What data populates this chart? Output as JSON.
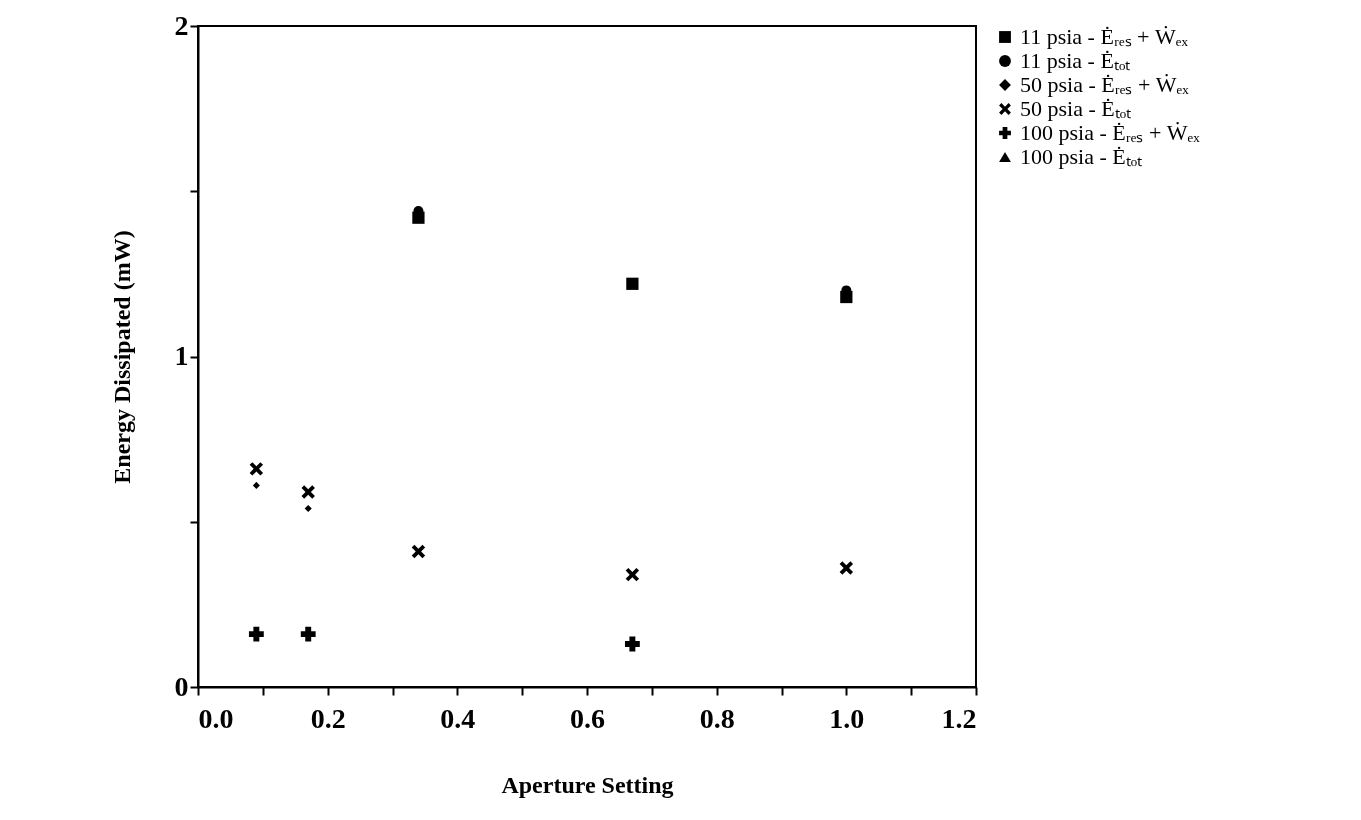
{
  "chart_data": {
    "type": "scatter",
    "xlabel": "Aperture Setting",
    "ylabel": "Energy Dissipated (mW)",
    "xlim": [
      0,
      1.2
    ],
    "xticks": [
      {
        "value": 0,
        "label": "0.0"
      },
      {
        "value": 0.1,
        "label": null
      },
      {
        "value": 0.2,
        "label": "0.2"
      },
      {
        "value": 0.3,
        "label": null
      },
      {
        "value": 0.4,
        "label": "0.4"
      },
      {
        "value": 0.5,
        "label": null
      },
      {
        "value": 0.6,
        "label": "0.6"
      },
      {
        "value": 0.7,
        "label": null
      },
      {
        "value": 0.8,
        "label": "0.8"
      },
      {
        "value": 0.9,
        "label": null
      },
      {
        "value": 1.0,
        "label": "1.0"
      },
      {
        "value": 1.1,
        "label": null
      },
      {
        "value": 1.2,
        "label": "1.2"
      }
    ],
    "ylim": [
      0,
      2
    ],
    "yticks": [
      0,
      {
        "value": 0.5,
        "label": null
      },
      1,
      {
        "value": 1.5,
        "label": null
      },
      2
    ],
    "grid": false,
    "legend": "right",
    "series": [
      {
        "name": "11 psia - Ėᵣₑₛ + Ẇₑₓ",
        "color": "#000000",
        "marker": "square",
        "x": [
          0.34,
          0.67,
          1.0
        ],
        "values": [
          1.42,
          1.22,
          1.18
        ]
      },
      {
        "name": "11 psia - Ėₜₒₜ",
        "color": "#000000",
        "marker": "circle",
        "x": [
          0.34,
          0.67,
          1.0
        ],
        "values": [
          1.44,
          null,
          1.2
        ]
      },
      {
        "name": "50 psia - Ėᵣₑₛ + Ẇₑₓ",
        "color": "#000000",
        "marker": "diamond",
        "x": [
          0.09,
          0.17
        ],
        "values": [
          0.61,
          0.54
        ]
      },
      {
        "name": "50 psia - Ėₜₒₜ",
        "color": "#000000",
        "marker": "x",
        "x": [
          0.09,
          0.17,
          0.34,
          0.67,
          1.0
        ],
        "values": [
          0.66,
          0.59,
          0.41,
          0.34,
          0.36
        ]
      },
      {
        "name": "100 psia - Ėᵣₑₛ + Ẇₑₓ",
        "color": "#000000",
        "marker": "cross",
        "x": [
          0.09,
          0.17,
          0.67
        ],
        "values": [
          0.16,
          0.16,
          0.13
        ]
      },
      {
        "name": "100 psia - Ėₜₒₜ",
        "color": "#000000",
        "marker": "triangle"
      }
    ]
  }
}
